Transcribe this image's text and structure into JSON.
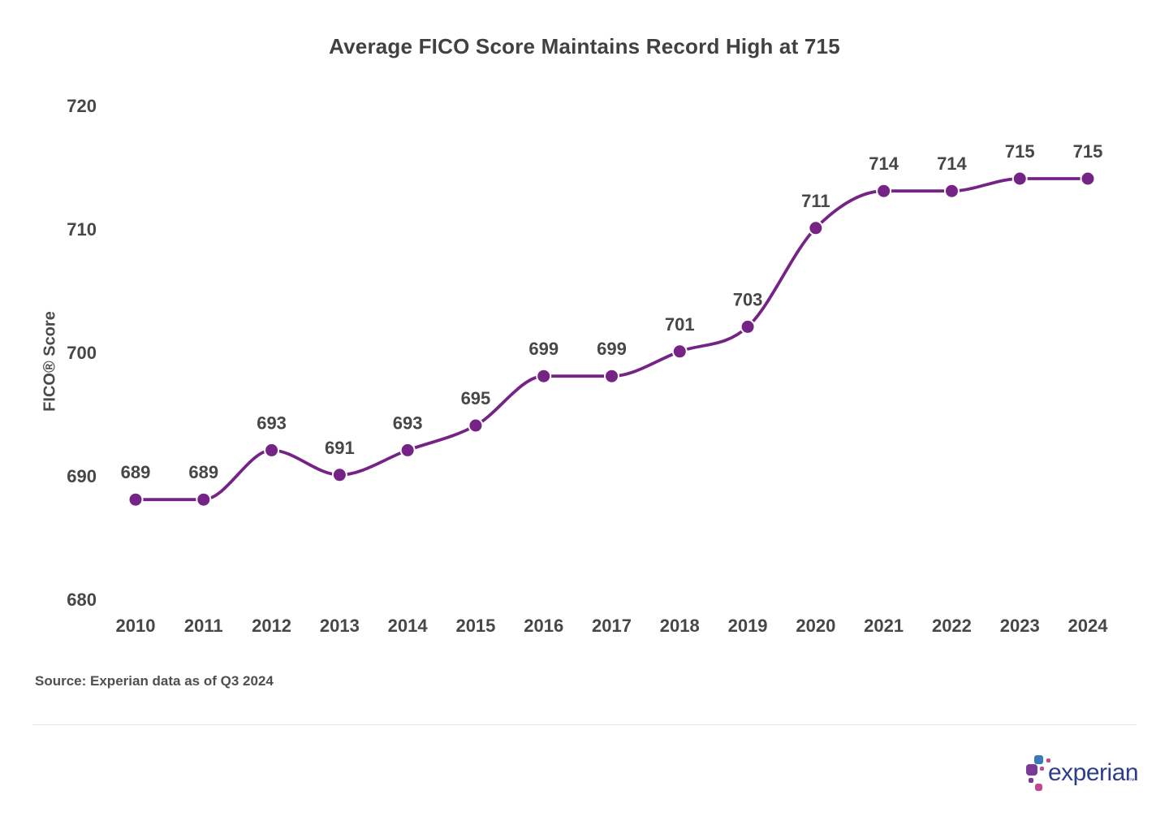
{
  "chart_data": {
    "type": "line",
    "title": "Average FICO Score Maintains Record High at 715",
    "xlabel": "",
    "ylabel": "FICO® Score",
    "categories": [
      "2010",
      "2011",
      "2012",
      "2013",
      "2014",
      "2015",
      "2016",
      "2017",
      "2018",
      "2019",
      "2020",
      "2021",
      "2022",
      "2023",
      "2024"
    ],
    "series": [
      {
        "name": "Average FICO Score",
        "values": [
          689,
          689,
          693,
          691,
          693,
          695,
          699,
          699,
          701,
          703,
          711,
          714,
          714,
          715,
          715
        ]
      }
    ],
    "ylim": [
      680,
      720
    ],
    "yticks": [
      680,
      690,
      700,
      710,
      720
    ],
    "grid": false,
    "legend_position": "none",
    "data_labels_shown": true,
    "line_color": "#752485",
    "marker_color": "#752485",
    "marker_outline": "#ffffff",
    "tick_label_color": "#474747",
    "data_label_color": "#474747",
    "title_color": "#414141"
  },
  "footer": {
    "source_note": "Source: Experian data as of Q3 2024"
  },
  "logo": {
    "wordmark": "experian",
    "trademark": "™",
    "wordmark_color": "#2f3d8e",
    "square_purple": "#7b3a97",
    "square_blue": "#3b7ab8",
    "square_magenta": "#c2488f"
  }
}
